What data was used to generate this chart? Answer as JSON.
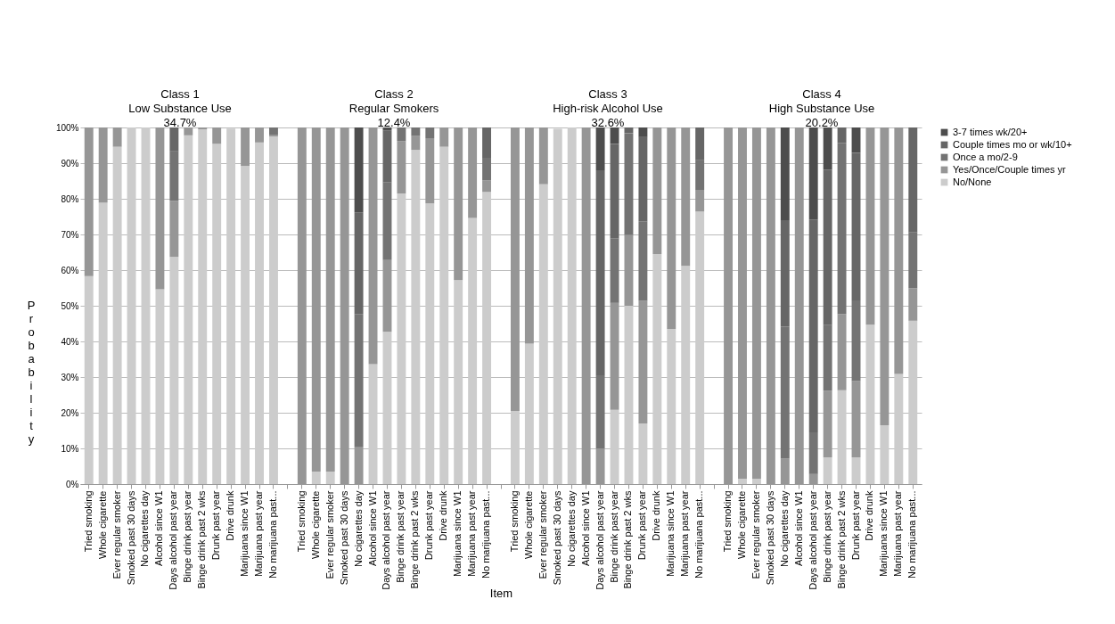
{
  "chart_data": {
    "type": "bar",
    "stacked": true,
    "xlabel": "Item",
    "ylabel": "Probability",
    "legend": "right",
    "grid": "y",
    "annotations": [
      "Class 1\nLow Substance Use\n34.7%",
      "Class 2\nRegular Smokers\n12.4%",
      "Class 3\nHigh-risk Alcohol Use\n32.6%",
      "Class 4\nHigh Substance Use\n20.2%"
    ],
    "ylim": [
      0,
      100
    ],
    "yticks": [
      {
        "value": 0,
        "label": "0%"
      },
      {
        "value": 10,
        "label": "10%"
      },
      {
        "value": 20,
        "label": "20%"
      },
      {
        "value": 30,
        "label": "30%"
      },
      {
        "value": 40,
        "label": "40%"
      },
      {
        "value": 50,
        "label": "50%"
      },
      {
        "value": 60,
        "label": "60%"
      },
      {
        "value": 70,
        "label": "70%"
      },
      {
        "value": 80,
        "label": "80%"
      },
      {
        "value": 90,
        "label": "90%"
      },
      {
        "value": 100,
        "label": "100%"
      }
    ],
    "categories": [
      "Tried smoking",
      "Whole cigarette",
      "Ever regular smoker",
      "Smoked past 30 days",
      "No cigarettes day",
      "Alcohol since W1",
      "Days alcohol past year",
      "Binge drink past year",
      "Binge drink past 2 wks",
      "Drunk past year",
      "Drive drunk",
      "Marijuana since W1",
      "Marijuana past year",
      "No marijuana past...",
      null,
      "Tried smoking",
      "Whole cigarette",
      "Ever regular smoker",
      "Smoked past 30 days",
      "No cigarettes day",
      "Alcohol since W1",
      "Days alcohol past year",
      "Binge drink past year",
      "Binge drink past 2 wks",
      "Drunk past year",
      "Drive drunk",
      "Marijuana since W1",
      "Marijuana past year",
      "No marijuana past...",
      null,
      "Tried smoking",
      "Whole cigarette",
      "Ever regular smoker",
      "Smoked past 30 days",
      "No cigarettes day",
      "Alcohol since W1",
      "Days alcohol past year",
      "Binge drink past year",
      "Binge drink past 2 wks",
      "Drunk past year",
      "Drive drunk",
      "Marijuana since W1",
      "Marijuana past year",
      "No marijuana past...",
      null,
      "Tried smoking",
      "Whole cigarette",
      "Ever regular smoker",
      "Smoked past 30 days",
      "No cigarettes day",
      "Alcohol since W1",
      "Days alcohol past year",
      "Binge drink past year",
      "Binge drink past 2 wks",
      "Drunk past year",
      "Drive drunk",
      "Marijuana since W1",
      "Marijuana past year",
      "No marijuana past..."
    ],
    "series": [
      {
        "name": "No/None",
        "color": "#cccccc",
        "values": [
          58.3,
          78.9,
          94.6,
          100,
          100,
          54.6,
          63.7,
          97.8,
          99.5,
          95.4,
          99.7,
          89.2,
          95.8,
          97.5,
          null,
          0,
          3.5,
          3.5,
          0,
          0,
          33.6,
          42.7,
          81.5,
          93.7,
          78.7,
          94.6,
          57.2,
          74.6,
          81.9,
          null,
          20.5,
          39.4,
          84.1,
          99.6,
          100,
          0,
          0,
          20.8,
          50.0,
          17.0,
          64.5,
          43.5,
          61.2,
          76.4,
          null,
          0,
          1.5,
          1.5,
          0,
          0,
          0,
          0,
          7.5,
          26.3,
          7.5,
          44.7,
          16.5,
          30.9,
          45.8
        ]
      },
      {
        "name": "Yes/Once/Couple times yr",
        "color": "#969696",
        "values": [
          41.7,
          21.1,
          5.4,
          0,
          0,
          45.4,
          15.7,
          2.2,
          0.5,
          4.6,
          null,
          10.8,
          4.2,
          0.5,
          null,
          100,
          96.5,
          96.5,
          100,
          10.3,
          66.4,
          20.1,
          14.7,
          3.9,
          18.3,
          5.4,
          42.8,
          25.4,
          3.3,
          null,
          79.5,
          60.6,
          15.9,
          null,
          0,
          100,
          10.0,
          30.0,
          19.9,
          34.4,
          35.5,
          56.5,
          38.8,
          6.1,
          null,
          100,
          98.5,
          98.5,
          100,
          7.2,
          100,
          2.8,
          18.7,
          21.4,
          21.4,
          55.3,
          83.5,
          69.1,
          9.1
        ]
      },
      {
        "name": "Once a mo/2-9",
        "color": "#737373",
        "values": [
          0,
          0,
          0,
          0,
          0,
          0,
          13.9,
          0,
          0,
          0,
          0,
          0,
          0,
          2.0,
          null,
          0,
          0,
          0,
          0,
          37.4,
          0,
          21.8,
          3.8,
          2.4,
          3.0,
          0,
          0,
          0,
          6.3,
          null,
          0,
          0,
          0,
          0,
          0,
          0,
          20.5,
          18.1,
          28.5,
          22.3,
          0,
          0,
          0,
          8.3,
          null,
          0,
          0,
          0,
          0,
          36.9,
          0,
          11.7,
          18.5,
          48.0,
          22.6,
          0,
          0,
          0,
          15.8
        ]
      },
      {
        "name": "Couple times mo or wk/10+",
        "color": "#666666",
        "values": [
          0,
          0,
          0,
          0,
          0,
          0,
          6.7,
          0,
          0,
          0,
          0,
          0,
          0,
          0,
          null,
          0,
          0,
          0,
          0,
          28.5,
          0,
          14.6,
          0,
          0,
          0,
          0,
          0,
          0,
          8.5,
          null,
          0,
          0,
          0,
          0,
          0,
          0,
          57.5,
          26.5,
          1.6,
          23.6,
          0,
          0,
          0,
          9.2,
          null,
          0,
          0,
          0,
          0,
          29.9,
          0,
          59.7,
          43.5,
          4.3,
          41.4,
          0,
          0,
          0,
          29.3
        ]
      },
      {
        "name": "3-7 times wk/20+",
        "color": "#4d4d4d",
        "values": [
          0,
          0,
          0,
          0,
          0,
          0,
          0,
          0,
          0,
          0,
          0,
          0,
          0,
          0,
          null,
          0,
          0,
          0,
          0,
          23.8,
          0,
          0.8,
          0,
          0,
          0,
          0,
          0,
          0,
          0,
          null,
          0,
          0,
          0,
          0,
          0,
          0,
          12.0,
          4.6,
          0,
          2.7,
          0,
          0,
          0,
          0,
          null,
          0,
          0,
          0,
          0,
          26.0,
          0,
          25.8,
          11.8,
          0,
          7.1,
          0,
          0,
          0,
          0
        ]
      }
    ]
  }
}
